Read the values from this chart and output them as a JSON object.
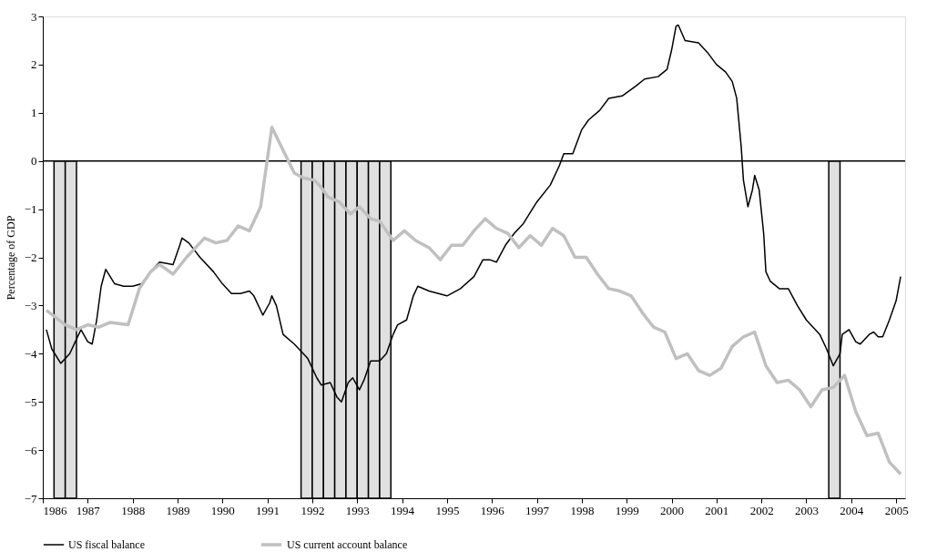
{
  "chart_data": {
    "type": "line",
    "ylabel": "Percentage of GDP",
    "xlim": [
      1986,
      2005.2
    ],
    "xticks": [
      1986,
      1987,
      1988,
      1989,
      1990,
      1991,
      1992,
      1993,
      1994,
      1995,
      1996,
      1997,
      1998,
      1999,
      2000,
      2001,
      2002,
      2003,
      2004,
      2005
    ],
    "ylim": [
      -7,
      3
    ],
    "yticks": [
      -7,
      -6,
      -5,
      -4,
      -3,
      -2,
      -1,
      0,
      1,
      2,
      3
    ],
    "grid": false,
    "legend": "bottom",
    "ref_lines": [
      {
        "axis": "y",
        "value": 0,
        "label": null,
        "color": "#000000"
      }
    ],
    "bands": [
      {
        "axis": "x",
        "from": 1986.25,
        "to": 1986.5,
        "label": null,
        "color": "#e0e0e0"
      },
      {
        "axis": "x",
        "from": 1986.5,
        "to": 1986.75,
        "label": null,
        "color": "#e0e0e0"
      },
      {
        "axis": "x",
        "from": 1991.75,
        "to": 1992.0,
        "label": null,
        "color": "#e0e0e0"
      },
      {
        "axis": "x",
        "from": 1992.0,
        "to": 1992.25,
        "label": null,
        "color": "#e0e0e0"
      },
      {
        "axis": "x",
        "from": 1992.25,
        "to": 1992.5,
        "label": null,
        "color": "#e0e0e0"
      },
      {
        "axis": "x",
        "from": 1992.5,
        "to": 1992.75,
        "label": null,
        "color": "#e0e0e0"
      },
      {
        "axis": "x",
        "from": 1992.75,
        "to": 1993.0,
        "label": null,
        "color": "#e0e0e0"
      },
      {
        "axis": "x",
        "from": 1993.0,
        "to": 1993.25,
        "label": null,
        "color": "#e0e0e0"
      },
      {
        "axis": "x",
        "from": 1993.25,
        "to": 1993.5,
        "label": null,
        "color": "#e0e0e0"
      },
      {
        "axis": "x",
        "from": 1993.5,
        "to": 1993.75,
        "label": null,
        "color": "#e0e0e0"
      },
      {
        "axis": "x",
        "from": 2003.5,
        "to": 2003.75,
        "label": null,
        "color": "#e0e0e0"
      }
    ],
    "series": [
      {
        "name": "US fiscal balance",
        "color": "#000000",
        "line_style": "solid",
        "x": [
          1986.08,
          1986.2,
          1986.4,
          1986.6,
          1986.75,
          1986.85,
          1987.0,
          1987.1,
          1987.2,
          1987.3,
          1987.4,
          1987.6,
          1987.8,
          1988.0,
          1988.2,
          1988.4,
          1988.6,
          1988.9,
          1989.05,
          1989.1,
          1989.25,
          1989.5,
          1989.8,
          1990.0,
          1990.2,
          1990.4,
          1990.6,
          1990.7,
          1990.9,
          1991.05,
          1991.1,
          1991.2,
          1991.35,
          1991.6,
          1991.9,
          1992.1,
          1992.2,
          1992.4,
          1992.55,
          1992.65,
          1992.8,
          1992.9,
          1993.05,
          1993.15,
          1993.3,
          1993.5,
          1993.65,
          1993.8,
          1993.9,
          1994.1,
          1994.25,
          1994.35,
          1994.6,
          1995.0,
          1995.3,
          1995.6,
          1995.8,
          1995.95,
          1996.1,
          1996.3,
          1996.5,
          1996.7,
          1997.0,
          1997.3,
          1997.5,
          1997.6,
          1997.8,
          1998.0,
          1998.15,
          1998.4,
          1998.6,
          1998.9,
          1999.2,
          1999.4,
          1999.7,
          1999.9,
          2000.0,
          2000.1,
          2000.15,
          2000.3,
          2000.6,
          2000.8,
          2001.0,
          2001.2,
          2001.35,
          2001.45,
          2001.55,
          2001.6,
          2001.7,
          2001.8,
          2001.85,
          2001.95,
          2002.05,
          2002.1,
          2002.2,
          2002.4,
          2002.6,
          2002.8,
          2003.0,
          2003.3,
          2003.45,
          2003.6,
          2003.75,
          2003.8,
          2003.95,
          2004.1,
          2004.2,
          2004.4,
          2004.5,
          2004.6,
          2004.7,
          2004.85,
          2005.0,
          2005.1
        ],
        "values": [
          -3.5,
          -3.9,
          -4.2,
          -4.0,
          -3.7,
          -3.5,
          -3.75,
          -3.8,
          -3.3,
          -2.6,
          -2.25,
          -2.55,
          -2.6,
          -2.6,
          -2.55,
          -2.3,
          -2.1,
          -2.15,
          -1.75,
          -1.6,
          -1.7,
          -2.0,
          -2.3,
          -2.55,
          -2.75,
          -2.75,
          -2.7,
          -2.8,
          -3.2,
          -2.95,
          -2.8,
          -3.0,
          -3.6,
          -3.8,
          -4.1,
          -4.5,
          -4.65,
          -4.6,
          -4.9,
          -5.0,
          -4.6,
          -4.5,
          -4.75,
          -4.55,
          -4.15,
          -4.15,
          -4.0,
          -3.6,
          -3.4,
          -3.3,
          -2.8,
          -2.6,
          -2.7,
          -2.8,
          -2.65,
          -2.4,
          -2.05,
          -2.05,
          -2.1,
          -1.75,
          -1.5,
          -1.3,
          -0.85,
          -0.5,
          -0.1,
          0.15,
          0.15,
          0.65,
          0.85,
          1.05,
          1.3,
          1.35,
          1.55,
          1.7,
          1.75,
          1.9,
          2.3,
          2.8,
          2.82,
          2.5,
          2.45,
          2.25,
          2.0,
          1.85,
          1.65,
          1.3,
          0.3,
          -0.4,
          -0.95,
          -0.6,
          -0.3,
          -0.6,
          -1.5,
          -2.3,
          -2.5,
          -2.65,
          -2.65,
          -3.0,
          -3.3,
          -3.6,
          -3.9,
          -4.25,
          -4.0,
          -3.6,
          -3.5,
          -3.75,
          -3.8,
          -3.6,
          -3.55,
          -3.65,
          -3.65,
          -3.3,
          -2.9,
          -2.4
        ]
      },
      {
        "name": "US current account balance",
        "color": "#c0c0c0",
        "line_style": "solid",
        "x": [
          1986.08,
          1986.5,
          1986.75,
          1987.0,
          1987.25,
          1987.5,
          1987.9,
          1988.15,
          1988.4,
          1988.6,
          1988.9,
          1989.2,
          1989.6,
          1989.85,
          1990.1,
          1990.35,
          1990.6,
          1990.85,
          1991.1,
          1991.6,
          1991.8,
          1992.05,
          1992.2,
          1992.35,
          1992.6,
          1992.85,
          1993.05,
          1993.3,
          1993.5,
          1993.8,
          1994.05,
          1994.3,
          1994.6,
          1994.85,
          1995.1,
          1995.35,
          1995.6,
          1995.85,
          1996.1,
          1996.35,
          1996.6,
          1996.85,
          1997.1,
          1997.35,
          1997.6,
          1997.85,
          1998.1,
          1998.35,
          1998.6,
          1998.85,
          1999.1,
          1999.35,
          1999.6,
          1999.85,
          2000.1,
          2000.35,
          2000.6,
          2000.85,
          2001.1,
          2001.35,
          2001.6,
          2001.85,
          2002.1,
          2002.35,
          2002.6,
          2002.85,
          2003.1,
          2003.35,
          2003.6,
          2003.85,
          2004.1,
          2004.35,
          2004.6,
          2004.85,
          2005.1
        ],
        "values": [
          -3.1,
          -3.4,
          -3.5,
          -3.4,
          -3.45,
          -3.35,
          -3.4,
          -2.65,
          -2.3,
          -2.15,
          -2.35,
          -2.0,
          -1.6,
          -1.7,
          -1.65,
          -1.35,
          -1.45,
          -0.95,
          0.7,
          -0.25,
          -0.35,
          -0.4,
          -0.55,
          -0.75,
          -0.85,
          -1.1,
          -0.95,
          -1.2,
          -1.25,
          -1.65,
          -1.45,
          -1.65,
          -1.8,
          -2.05,
          -1.75,
          -1.75,
          -1.45,
          -1.2,
          -1.4,
          -1.5,
          -1.8,
          -1.55,
          -1.75,
          -1.4,
          -1.55,
          -2.0,
          -2.0,
          -2.35,
          -2.65,
          -2.7,
          -2.8,
          -3.15,
          -3.45,
          -3.55,
          -4.1,
          -4.0,
          -4.35,
          -4.45,
          -4.3,
          -3.85,
          -3.65,
          -3.55,
          -4.25,
          -4.6,
          -4.55,
          -4.75,
          -5.1,
          -4.75,
          -4.7,
          -4.45,
          -5.2,
          -5.7,
          -5.65,
          -6.25,
          -6.5
        ]
      }
    ]
  }
}
